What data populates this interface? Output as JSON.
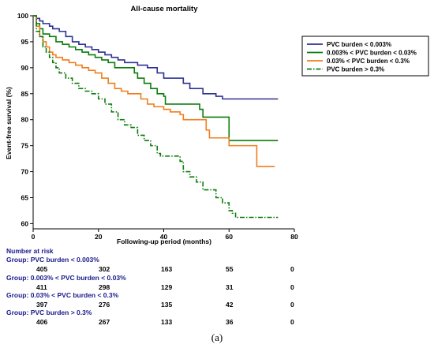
{
  "chart_data": {
    "type": "line",
    "title": "All-cause mortality",
    "xlabel": "Following-up period (months)",
    "ylabel": "Event-free survival (%)",
    "xlim": [
      0,
      80
    ],
    "ylim": [
      59,
      100
    ],
    "x_ticks": [
      "0",
      "20",
      "40",
      "60",
      "80"
    ],
    "y_ticks": [
      "100",
      "95",
      "90",
      "85",
      "80",
      "75",
      "70",
      "65",
      "60"
    ],
    "legend_position": "right",
    "series": [
      {
        "name": "PVC burden < 0.003%",
        "color": "#2e3192",
        "dash": "solid",
        "points": [
          [
            0,
            100
          ],
          [
            1,
            99.5
          ],
          [
            2,
            99
          ],
          [
            3,
            98.5
          ],
          [
            5,
            98
          ],
          [
            6,
            97.5
          ],
          [
            8,
            97
          ],
          [
            10,
            96
          ],
          [
            12,
            95
          ],
          [
            14,
            94.5
          ],
          [
            16,
            94
          ],
          [
            18,
            93.5
          ],
          [
            20,
            93
          ],
          [
            22,
            92.5
          ],
          [
            24,
            92
          ],
          [
            26,
            91.5
          ],
          [
            28,
            91
          ],
          [
            32,
            90.5
          ],
          [
            35,
            90
          ],
          [
            38,
            89
          ],
          [
            40,
            88
          ],
          [
            44,
            88
          ],
          [
            46,
            87
          ],
          [
            48,
            86
          ],
          [
            52,
            85
          ],
          [
            56,
            84.5
          ],
          [
            58,
            84
          ],
          [
            75,
            84
          ]
        ]
      },
      {
        "name": "0.003% < PVC burden < 0.03%",
        "color": "#0a7d0a",
        "dash": "solid",
        "points": [
          [
            0,
            100
          ],
          [
            1,
            98.5
          ],
          [
            2,
            97.5
          ],
          [
            3,
            96.5
          ],
          [
            5,
            96
          ],
          [
            7,
            95
          ],
          [
            9,
            94.5
          ],
          [
            11,
            94
          ],
          [
            13,
            93.5
          ],
          [
            15,
            93
          ],
          [
            17,
            92.5
          ],
          [
            19,
            92
          ],
          [
            21,
            91.5
          ],
          [
            23,
            91
          ],
          [
            25,
            90
          ],
          [
            30,
            90
          ],
          [
            31,
            89
          ],
          [
            32,
            88
          ],
          [
            34,
            87
          ],
          [
            36,
            86
          ],
          [
            38,
            85
          ],
          [
            40,
            84.5
          ],
          [
            40.5,
            83
          ],
          [
            50,
            83
          ],
          [
            51,
            82
          ],
          [
            52,
            80.5
          ],
          [
            59,
            80.5
          ],
          [
            60,
            76
          ],
          [
            75,
            76
          ]
        ]
      },
      {
        "name": "0.03% < PVC burden < 0.3%",
        "color": "#f07d1e",
        "dash": "solid",
        "points": [
          [
            0,
            100
          ],
          [
            1,
            98
          ],
          [
            2,
            96
          ],
          [
            3,
            95
          ],
          [
            4,
            94
          ],
          [
            5,
            93
          ],
          [
            6,
            92.5
          ],
          [
            7,
            92
          ],
          [
            9,
            91.5
          ],
          [
            11,
            91
          ],
          [
            13,
            90.5
          ],
          [
            15,
            90
          ],
          [
            17,
            89.5
          ],
          [
            19,
            89
          ],
          [
            21,
            88
          ],
          [
            23,
            87
          ],
          [
            25,
            86
          ],
          [
            27,
            85.5
          ],
          [
            29,
            85
          ],
          [
            33,
            84
          ],
          [
            35,
            83
          ],
          [
            37,
            82.5
          ],
          [
            40,
            82
          ],
          [
            42,
            81.5
          ],
          [
            45,
            81
          ],
          [
            46,
            80
          ],
          [
            52,
            80
          ],
          [
            53,
            78
          ],
          [
            54,
            76.5
          ],
          [
            59,
            76.5
          ],
          [
            60,
            75
          ],
          [
            68,
            75
          ],
          [
            68.5,
            71
          ],
          [
            74,
            71
          ]
        ]
      },
      {
        "name": "PVC burden > 0.3%",
        "color": "#0a7d0a",
        "dash": "dashdot",
        "points": [
          [
            0,
            100
          ],
          [
            1,
            97
          ],
          [
            2,
            96
          ],
          [
            3,
            94
          ],
          [
            4,
            93
          ],
          [
            5,
            92
          ],
          [
            6,
            91
          ],
          [
            7,
            90
          ],
          [
            8,
            89
          ],
          [
            10,
            88
          ],
          [
            12,
            87
          ],
          [
            14,
            86
          ],
          [
            16,
            85.5
          ],
          [
            18,
            85
          ],
          [
            20,
            84
          ],
          [
            22,
            83
          ],
          [
            24,
            81.5
          ],
          [
            26,
            80
          ],
          [
            28,
            79
          ],
          [
            30,
            78.5
          ],
          [
            32,
            77
          ],
          [
            34,
            76
          ],
          [
            36,
            75
          ],
          [
            38,
            73.5
          ],
          [
            39,
            73
          ],
          [
            44,
            73
          ],
          [
            45,
            72
          ],
          [
            46,
            70
          ],
          [
            48,
            69
          ],
          [
            50,
            68
          ],
          [
            52,
            66.5
          ],
          [
            55,
            66.5
          ],
          [
            56,
            65
          ],
          [
            58,
            64
          ],
          [
            60,
            62.5
          ],
          [
            61,
            62
          ],
          [
            62,
            61.2
          ],
          [
            75,
            61.2
          ]
        ]
      }
    ]
  },
  "risk_table": {
    "heading": "Number at risk",
    "groups": [
      {
        "label": "Group: PVC burden < 0.003%",
        "values": [
          "405",
          "302",
          "163",
          "55",
          "0"
        ]
      },
      {
        "label": "Group: 0.003% < PVC burden < 0.03%",
        "values": [
          "411",
          "298",
          "129",
          "31",
          "0"
        ]
      },
      {
        "label": "Group: 0.03% < PVC burden < 0.3%",
        "values": [
          "397",
          "276",
          "135",
          "42",
          "0"
        ]
      },
      {
        "label": "Group: PVC burden > 0.3%",
        "values": [
          "406",
          "267",
          "133",
          "36",
          "0"
        ]
      }
    ]
  },
  "caption": "(a)"
}
